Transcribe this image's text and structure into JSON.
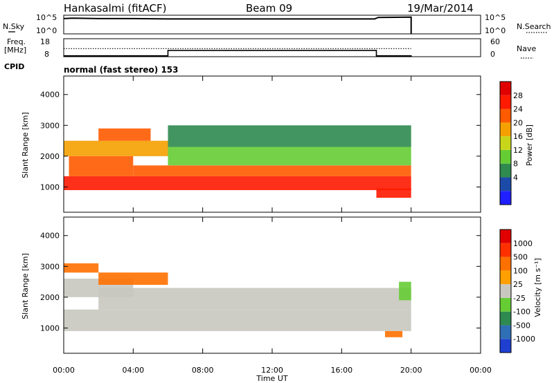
{
  "header": {
    "station": "Hankasalmi (fitACF)",
    "beam": "Beam 09",
    "date": "19/Mar/2014"
  },
  "status_panels": {
    "nsky_label": "N.Sky",
    "nsearch_label": "N.Search",
    "nsky_ticks": [
      "10^5",
      "10^0"
    ],
    "nsearch_ticks": [
      "10^5",
      "10^0"
    ],
    "freq_label": "Freq.",
    "freq_unit": "[MHz]",
    "freq_ticks": [
      "18",
      "8"
    ],
    "nave_label": "Nave",
    "nave_ticks": [
      "60",
      "0"
    ],
    "cpid_label": "CPID",
    "cpid_value": "normal (fast stereo) 153"
  },
  "axes": {
    "ylabel": "Slant Range [km]",
    "yticks": [
      "4000",
      "3000",
      "2000",
      "1000"
    ],
    "xlabel": "Time UT",
    "xticks": [
      "00:00",
      "04:00",
      "08:00",
      "12:00",
      "16:00",
      "20:00",
      "00:00"
    ]
  },
  "power_colorbar": {
    "label": "Power [dB]",
    "ticks": [
      "28",
      "24",
      "20",
      "16",
      "12",
      "8",
      "4"
    ],
    "colors": [
      "#1f1fff",
      "#1c4aa8",
      "#2e8a4f",
      "#66cc33",
      "#c8d61a",
      "#f5a000",
      "#ff5a00",
      "#ff1a00",
      "#e00000"
    ]
  },
  "velocity_colorbar": {
    "label": "Velocity [m s⁻¹]",
    "ticks": [
      "1000",
      "500",
      "100",
      "25",
      "-25",
      "-100",
      "-500",
      "-1000"
    ],
    "colors": [
      "#1f3fd0",
      "#2f6fb5",
      "#2e8a4f",
      "#66cc33",
      "#c8c8c0",
      "#ffa000",
      "#ff7000",
      "#ff3000",
      "#e00000"
    ]
  },
  "chart_data": [
    {
      "type": "line",
      "title": "N.Sky / N.Search",
      "x": [
        0,
        0.5,
        2,
        4,
        6,
        8,
        10,
        12,
        14,
        16,
        17.9,
        18.1,
        20
      ],
      "series": [
        {
          "name": "N.Sky",
          "values": [
            4.1,
            4.2,
            4.1,
            4.1,
            4.0,
            4.0,
            4.0,
            4.0,
            4.0,
            4.0,
            4.0,
            4.4,
            4.5
          ]
        }
      ],
      "ylim": [
        0,
        5
      ]
    },
    {
      "type": "line",
      "title": "Freq. / Nave",
      "x": [
        0,
        6,
        6,
        18,
        18,
        20
      ],
      "series": [
        {
          "name": "Freq.",
          "values": [
            8.5,
            8.5,
            11.5,
            11.5,
            8.5,
            8.5
          ]
        },
        {
          "name": "Nave",
          "values": [
            27,
            27,
            27,
            27,
            27,
            27
          ]
        }
      ],
      "ylim": [
        8,
        18
      ]
    },
    {
      "type": "heatmap",
      "title": "Power [dB]",
      "xlabel": "Time UT",
      "ylabel": "Slant Range [km]",
      "xlim": [
        0,
        24
      ],
      "ylim": [
        180,
        4600
      ],
      "bands": [
        {
          "t0": 0.0,
          "t1": 20,
          "r0": 900,
          "r1": 1350,
          "value": 26
        },
        {
          "t0": 0.3,
          "t1": 4,
          "r0": 1350,
          "r1": 2000,
          "value": 24
        },
        {
          "t0": 0.0,
          "t1": 6,
          "r0": 2000,
          "r1": 2500,
          "value": 18
        },
        {
          "t0": 4,
          "t1": 20,
          "r0": 1350,
          "r1": 1700,
          "value": 24
        },
        {
          "t0": 6,
          "t1": 20,
          "r0": 1700,
          "r1": 2300,
          "value": 14
        },
        {
          "t0": 6,
          "t1": 20,
          "r0": 2300,
          "r1": 3000,
          "value": 8
        },
        {
          "t0": 18,
          "t1": 20,
          "r0": 650,
          "r1": 950,
          "value": 26
        },
        {
          "t0": 2,
          "t1": 5,
          "r0": 2500,
          "r1": 2900,
          "value": 24
        }
      ]
    },
    {
      "type": "heatmap",
      "title": "Velocity [m s⁻¹]",
      "xlabel": "Time UT",
      "ylabel": "Slant Range [km]",
      "xlim": [
        0,
        24
      ],
      "ylim": [
        180,
        4600
      ],
      "bands": [
        {
          "t0": 0.0,
          "t1": 20,
          "r0": 900,
          "r1": 1600,
          "value": 0
        },
        {
          "t0": 2,
          "t1": 20,
          "r0": 1600,
          "r1": 2300,
          "value": 0
        },
        {
          "t0": 0,
          "t1": 4,
          "r0": 2000,
          "r1": 2600,
          "value": 0
        },
        {
          "t0": 2,
          "t1": 6,
          "r0": 2400,
          "r1": 2800,
          "value": -150
        },
        {
          "t0": 0,
          "t1": 2,
          "r0": 2800,
          "r1": 3100,
          "value": -150
        },
        {
          "t0": 19.3,
          "t1": 20,
          "r0": 1900,
          "r1": 2500,
          "value": 80
        },
        {
          "t0": 18.5,
          "t1": 19.5,
          "r0": 700,
          "r1": 900,
          "value": -150
        }
      ]
    }
  ]
}
